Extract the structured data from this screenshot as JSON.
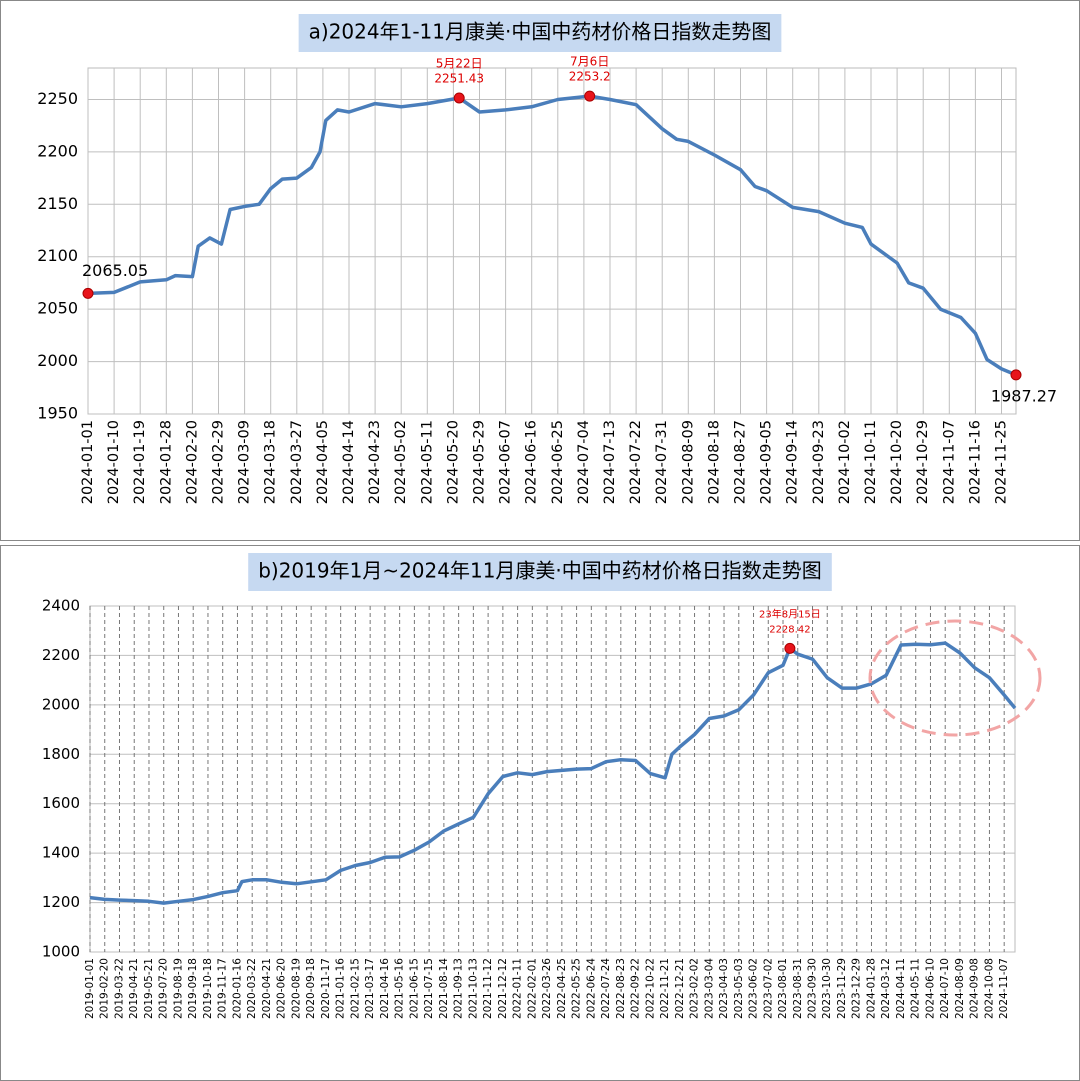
{
  "chart_data": [
    {
      "type": "line",
      "title": "a)2024年1-11月康美·中国中药材价格日指数走势图",
      "color": "#4a7ebb",
      "x": [
        "2024-01-01",
        "2024-01-10",
        "2024-01-19",
        "2024-01-28",
        "2024-02-05",
        "2024-02-20",
        "2024-02-22",
        "2024-02-26",
        "2024-03-01",
        "2024-03-04",
        "2024-03-09",
        "2024-03-14",
        "2024-03-18",
        "2024-03-22",
        "2024-03-27",
        "2024-04-01",
        "2024-04-04",
        "2024-04-06",
        "2024-04-10",
        "2024-04-14",
        "2024-04-23",
        "2024-05-02",
        "2024-05-11",
        "2024-05-22",
        "2024-05-29",
        "2024-06-07",
        "2024-06-16",
        "2024-06-25",
        "2024-07-06",
        "2024-07-13",
        "2024-07-22",
        "2024-07-31",
        "2024-08-05",
        "2024-08-09",
        "2024-08-18",
        "2024-08-27",
        "2024-09-01",
        "2024-09-05",
        "2024-09-14",
        "2024-09-23",
        "2024-10-02",
        "2024-10-08",
        "2024-10-11",
        "2024-10-20",
        "2024-10-24",
        "2024-10-29",
        "2024-11-04",
        "2024-11-11",
        "2024-11-16",
        "2024-11-20",
        "2024-11-25",
        "2024-11-30"
      ],
      "values": [
        2065.05,
        2066,
        2076,
        2078,
        2082,
        2081,
        2110,
        2118,
        2112,
        2145,
        2148,
        2150,
        2165,
        2174,
        2175,
        2185,
        2200,
        2230,
        2240,
        2238,
        2246,
        2243,
        2246,
        2251.43,
        2238,
        2240,
        2243,
        2250,
        2253.2,
        2250,
        2245,
        2222,
        2212,
        2210,
        2197,
        2183,
        2167,
        2163,
        2147,
        2143,
        2132,
        2128,
        2112,
        2094,
        2075,
        2070,
        2050,
        2042,
        2027,
        2002,
        1993,
        1987.27
      ],
      "xlim": [
        "2024-01-01",
        "2024-11-30"
      ],
      "xticks": [
        "2024-01-01",
        "2024-01-10",
        "2024-01-19",
        "2024-01-28",
        "2024-02-20",
        "2024-02-29",
        "2024-03-09",
        "2024-03-18",
        "2024-03-27",
        "2024-04-05",
        "2024-04-14",
        "2024-04-23",
        "2024-05-02",
        "2024-05-11",
        "2024-05-20",
        "2024-05-29",
        "2024-06-07",
        "2024-06-16",
        "2024-06-25",
        "2024-07-04",
        "2024-07-13",
        "2024-07-22",
        "2024-07-31",
        "2024-08-09",
        "2024-08-18",
        "2024-08-27",
        "2024-09-05",
        "2024-09-14",
        "2024-09-23",
        "2024-10-02",
        "2024-10-11",
        "2024-10-20",
        "2024-10-29",
        "2024-11-07",
        "2024-11-16",
        "2024-11-25"
      ],
      "ylim": [
        1950,
        2280
      ],
      "yticks": [
        1950,
        2000,
        2050,
        2100,
        2150,
        2200,
        2250
      ],
      "grid": true,
      "annotations": [
        {
          "x": "2024-05-22",
          "label": "5月22日",
          "value": 2251.43
        },
        {
          "x": "2024-07-06",
          "label": "7月6日",
          "value": 2253.2
        },
        {
          "x": "2024-01-01",
          "value": 2065.05
        },
        {
          "x": "2024-11-30",
          "value": 1987.27
        }
      ]
    },
    {
      "type": "line",
      "title": "b)2019年1月~2024年11月康美·中国中药材价格日指数走势图",
      "color": "#4a7ebb",
      "x": [
        "2019-01-01",
        "2019-02-20",
        "2019-03-22",
        "2019-04-21",
        "2019-05-21",
        "2019-07-20",
        "2019-08-19",
        "2019-09-18",
        "2019-10-18",
        "2019-11-17",
        "2020-01-16",
        "2020-02-05",
        "2020-03-22",
        "2020-04-21",
        "2020-06-20",
        "2020-08-19",
        "2020-09-18",
        "2020-11-17",
        "2021-01-16",
        "2021-02-15",
        "2021-03-17",
        "2021-04-16",
        "2021-05-16",
        "2021-06-15",
        "2021-07-15",
        "2021-08-14",
        "2021-09-13",
        "2021-10-13",
        "2021-11-12",
        "2021-12-12",
        "2022-01-11",
        "2022-02-01",
        "2022-03-26",
        "2022-04-25",
        "2022-05-25",
        "2022-06-24",
        "2022-07-24",
        "2022-08-23",
        "2022-09-22",
        "2022-10-22",
        "2022-11-21",
        "2022-12-05",
        "2022-12-21",
        "2023-02-02",
        "2023-03-04",
        "2023-04-03",
        "2023-05-03",
        "2023-06-02",
        "2023-07-02",
        "2023-08-01",
        "2023-08-15",
        "2023-08-31",
        "2023-09-30",
        "2023-10-30",
        "2023-11-29",
        "2023-12-29",
        "2024-01-28",
        "2024-03-12",
        "2024-04-11",
        "2024-05-11",
        "2024-06-10",
        "2024-07-10",
        "2024-08-09",
        "2024-09-08",
        "2024-10-08",
        "2024-11-07",
        "2024-11-29"
      ],
      "values": [
        1220,
        1213,
        1210,
        1208,
        1205,
        1198,
        1205,
        1212,
        1225,
        1240,
        1248,
        1285,
        1292,
        1292,
        1282,
        1276,
        1284,
        1292,
        1330,
        1350,
        1362,
        1383,
        1385,
        1412,
        1445,
        1490,
        1518,
        1545,
        1640,
        1710,
        1725,
        1718,
        1730,
        1735,
        1740,
        1742,
        1770,
        1778,
        1775,
        1722,
        1705,
        1800,
        1830,
        1880,
        1945,
        1955,
        1980,
        2040,
        2130,
        2160,
        2228.42,
        2205,
        2185,
        2110,
        2068,
        2068,
        2085,
        2120,
        2242,
        2245,
        2243,
        2250,
        2210,
        2150,
        2110,
        2040,
        1987
      ],
      "xlim": [
        "2019-01-01",
        "2024-11-29"
      ],
      "xticks": [
        "2019-01-01",
        "2019-02-20",
        "2019-03-22",
        "2019-04-21",
        "2019-05-21",
        "2019-07-20",
        "2019-08-19",
        "2019-09-18",
        "2019-10-18",
        "2019-11-17",
        "2020-01-16",
        "2020-03-22",
        "2020-04-21",
        "2020-06-20",
        "2020-08-19",
        "2020-09-18",
        "2020-11-17",
        "2021-01-16",
        "2021-02-15",
        "2021-03-17",
        "2021-04-16",
        "2021-05-16",
        "2021-06-15",
        "2021-07-15",
        "2021-08-14",
        "2021-09-13",
        "2021-10-13",
        "2021-11-12",
        "2021-12-12",
        "2022-01-11",
        "2022-02-01",
        "2022-03-26",
        "2022-04-25",
        "2022-05-25",
        "2022-06-24",
        "2022-07-24",
        "2022-08-23",
        "2022-09-22",
        "2022-10-22",
        "2022-11-21",
        "2022-12-21",
        "2023-02-02",
        "2023-03-04",
        "2023-04-03",
        "2023-05-03",
        "2023-06-02",
        "2023-07-02",
        "2023-08-01",
        "2023-08-31",
        "2023-09-30",
        "2023-10-30",
        "2023-11-29",
        "2023-12-29",
        "2024-01-28",
        "2024-03-12",
        "2024-04-11",
        "2024-05-11",
        "2024-06-10",
        "2024-07-10",
        "2024-08-09",
        "2024-09-08",
        "2024-10-08",
        "2024-11-07"
      ],
      "ylim": [
        1000,
        2400
      ],
      "yticks": [
        1000,
        1200,
        1400,
        1600,
        1800,
        2000,
        2200,
        2400
      ],
      "grid": true,
      "annotations": [
        {
          "x": "2023-08-15",
          "label": "23年8月15日",
          "value": 2228.42
        }
      ]
    }
  ]
}
